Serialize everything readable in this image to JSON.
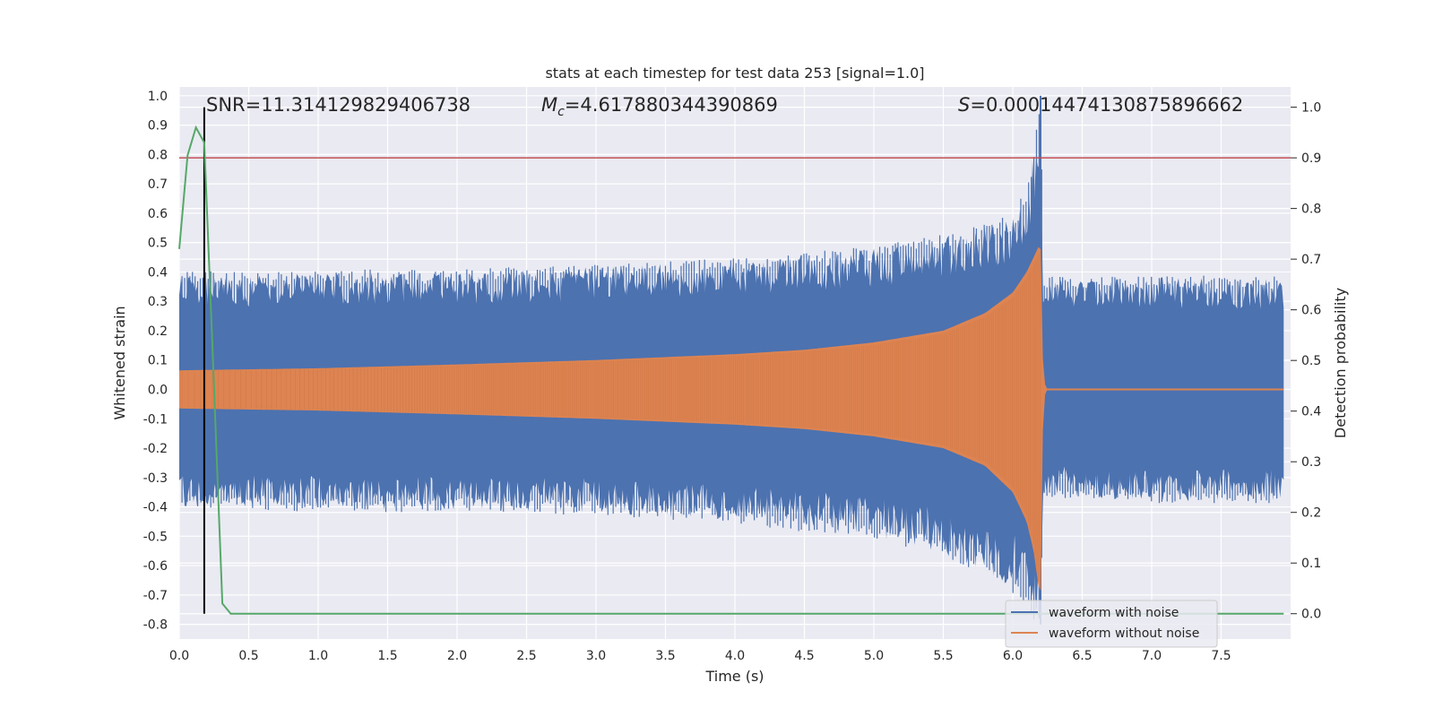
{
  "chart_data": {
    "type": "line",
    "title": "stats at each timestep for test data 253 [signal=1.0]",
    "xlabel": "Time (s)",
    "ylabel_left": "Whitened strain",
    "ylabel_right": "Detection probability",
    "xlim": [
      0.0,
      8.0
    ],
    "ylim_left": [
      -0.85,
      1.03
    ],
    "ylim_right": [
      -0.05,
      1.04
    ],
    "xticks": [
      "0.0",
      "0.5",
      "1.0",
      "1.5",
      "2.0",
      "2.5",
      "3.0",
      "3.5",
      "4.0",
      "4.5",
      "5.0",
      "5.5",
      "6.0",
      "6.5",
      "7.0",
      "7.5"
    ],
    "yticks_left": [
      "1.0",
      "0.9",
      "0.8",
      "0.7",
      "0.6",
      "0.5",
      "0.4",
      "0.3",
      "0.2",
      "0.1",
      "0.0",
      "-0.1",
      "-0.2",
      "-0.3",
      "-0.4",
      "-0.5",
      "-0.6",
      "-0.7",
      "-0.8"
    ],
    "yticks_right": [
      "1.0",
      "0.9",
      "0.8",
      "0.7",
      "0.6",
      "0.5",
      "0.4",
      "0.3",
      "0.2",
      "0.1",
      "0.0"
    ],
    "annotations": {
      "snr": "SNR=11.314129829406738",
      "mc_symbol": "M",
      "mc_sub": "c",
      "mc_value": "=4.617880344390869",
      "s_symbol": "S",
      "s_value": "=0.00014474130875896662"
    },
    "legend": {
      "location": "lower-right",
      "entries": [
        "waveform with noise",
        "waveform without noise"
      ]
    },
    "colors": {
      "noise": "#4c72b0",
      "clean": "#dd8452",
      "probability": "#55a868",
      "threshold": "#c44e52",
      "marker": "#000000",
      "background": "#eaeaf2",
      "grid": "#ffffff"
    },
    "series": [
      {
        "name": "waveform with noise",
        "axis": "left",
        "envelope": {
          "t": [
            0.0,
            0.5,
            1.0,
            2.0,
            3.0,
            4.0,
            5.0,
            5.5,
            5.8,
            6.0,
            6.1,
            6.15,
            6.2,
            6.22,
            7.0,
            8.0
          ],
          "upper": [
            0.4,
            0.39,
            0.4,
            0.4,
            0.42,
            0.44,
            0.48,
            0.52,
            0.56,
            0.6,
            0.68,
            0.85,
            1.0,
            0.38,
            0.38,
            0.38
          ],
          "lower": [
            -0.4,
            -0.4,
            -0.41,
            -0.41,
            -0.42,
            -0.45,
            -0.5,
            -0.56,
            -0.62,
            -0.68,
            -0.74,
            -0.8,
            -0.8,
            -0.36,
            -0.38,
            -0.38
          ]
        }
      },
      {
        "name": "waveform without noise",
        "axis": "left",
        "envelope": {
          "t": [
            0.0,
            1.0,
            2.0,
            3.0,
            4.0,
            4.5,
            5.0,
            5.5,
            5.8,
            6.0,
            6.1,
            6.15,
            6.2,
            6.22,
            6.25,
            8.0
          ],
          "upper": [
            0.065,
            0.072,
            0.085,
            0.1,
            0.12,
            0.135,
            0.16,
            0.2,
            0.26,
            0.33,
            0.4,
            0.45,
            0.5,
            0.03,
            0.0,
            0.0
          ],
          "lower": [
            -0.065,
            -0.072,
            -0.085,
            -0.1,
            -0.12,
            -0.135,
            -0.16,
            -0.2,
            -0.26,
            -0.35,
            -0.45,
            -0.55,
            -0.72,
            -0.03,
            0.0,
            0.0
          ]
        }
      },
      {
        "name": "detection probability",
        "axis": "right",
        "x": [
          0.0,
          0.06,
          0.12,
          0.18,
          0.24,
          0.31,
          0.37,
          0.5,
          1.0,
          2.0,
          3.0,
          4.0,
          5.0,
          6.0,
          7.0,
          7.95
        ],
        "y": [
          0.72,
          0.905,
          0.96,
          0.93,
          0.52,
          0.02,
          0.0,
          0.0,
          0.0,
          0.0,
          0.0,
          0.0,
          0.0,
          0.0,
          0.0,
          0.0
        ]
      }
    ],
    "threshold": {
      "axis": "right",
      "value": 0.9
    },
    "marker_time": 0.18
  }
}
